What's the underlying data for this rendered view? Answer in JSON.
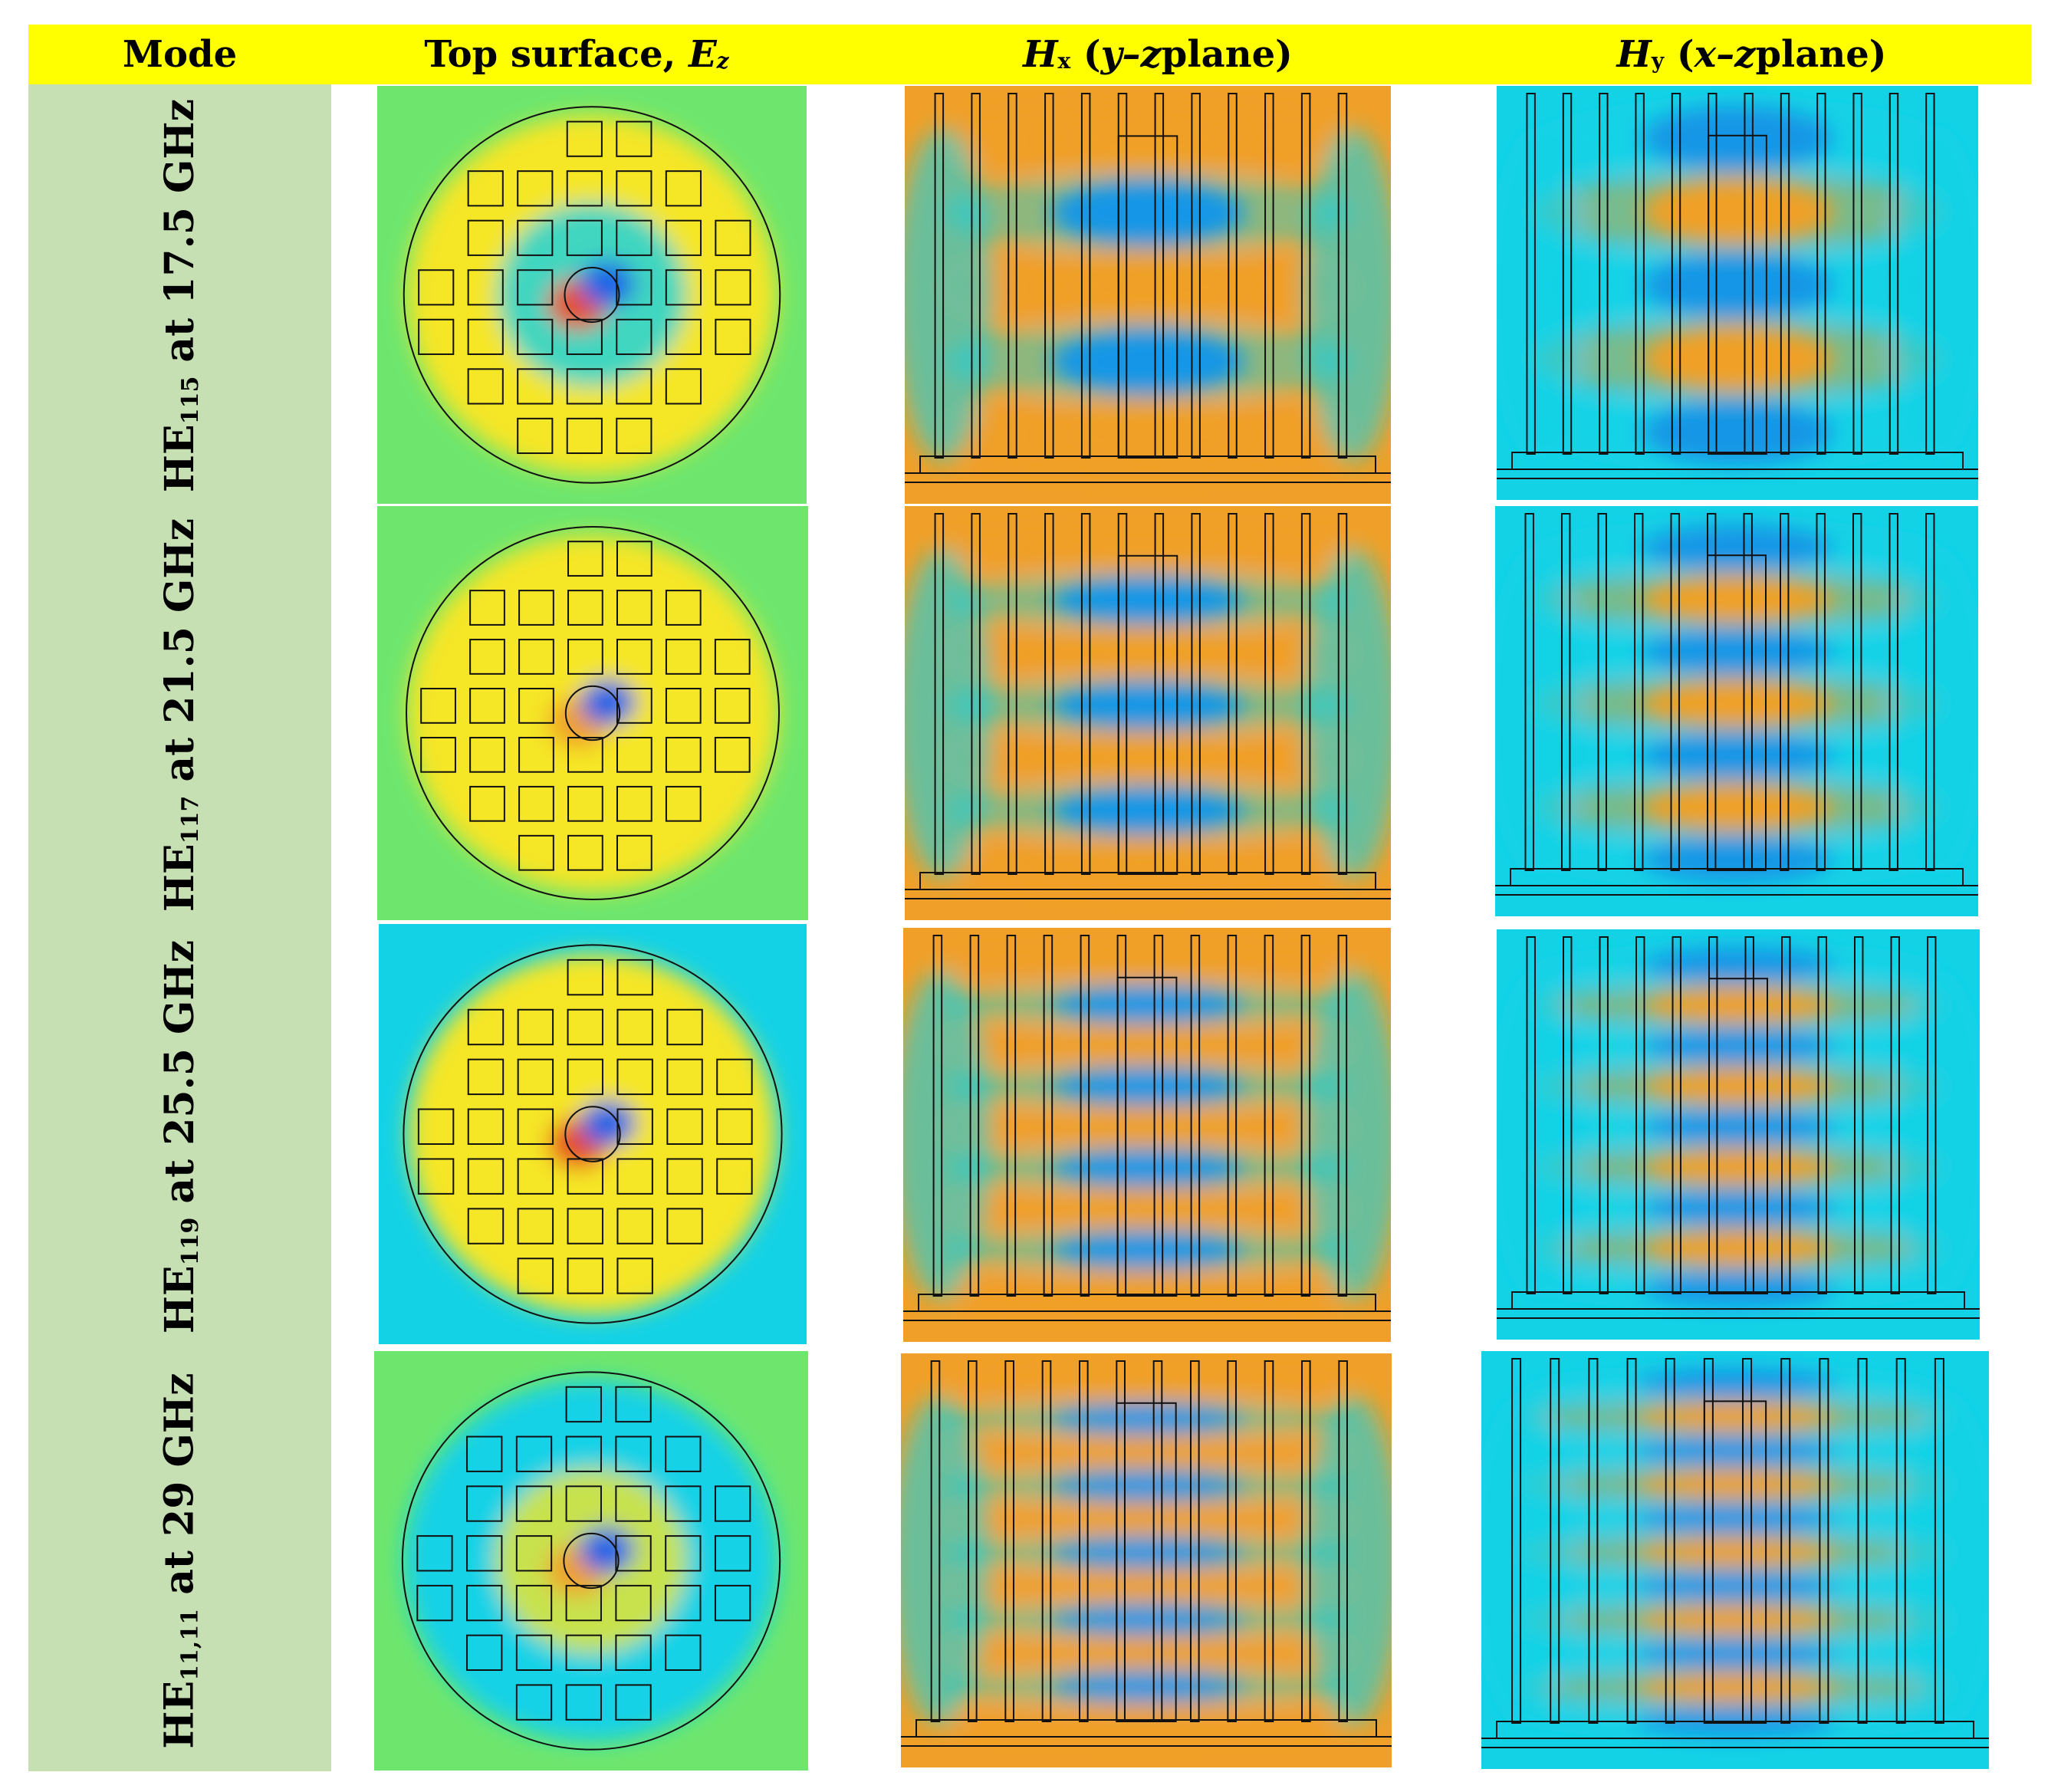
{
  "header": {
    "col1": "Mode",
    "col2_prefix": "Top surface, ",
    "col2_field": "E",
    "col2_sub": "z",
    "col3_field": "H",
    "col3_sub": "x",
    "col3_plane": "y–z",
    "col3_suffix": " plane)",
    "col4_field": "H",
    "col4_sub": "y",
    "col4_plane": "x–z",
    "col4_suffix": " plane)"
  },
  "rows": [
    {
      "mode": "HE",
      "sub": "115",
      "freq": " at 17.5 GHz"
    },
    {
      "mode": "HE",
      "sub": "117",
      "freq": " at 21.5 GHz"
    },
    {
      "mode": "HE",
      "sub": "119",
      "freq": " at 25.5 GHz"
    },
    {
      "mode": "HE",
      "sub": "11,11",
      "freq": " at 29 GHz"
    }
  ],
  "colors": {
    "header_bg": "#ffff00",
    "mode_bg": "#c6dfb3",
    "field_blue": "#1e64e6",
    "field_cyan": "#14d2e6",
    "field_green": "#6ee66e",
    "field_yellow": "#f5e628",
    "field_orange": "#f0a028",
    "field_red": "#e6501e"
  }
}
